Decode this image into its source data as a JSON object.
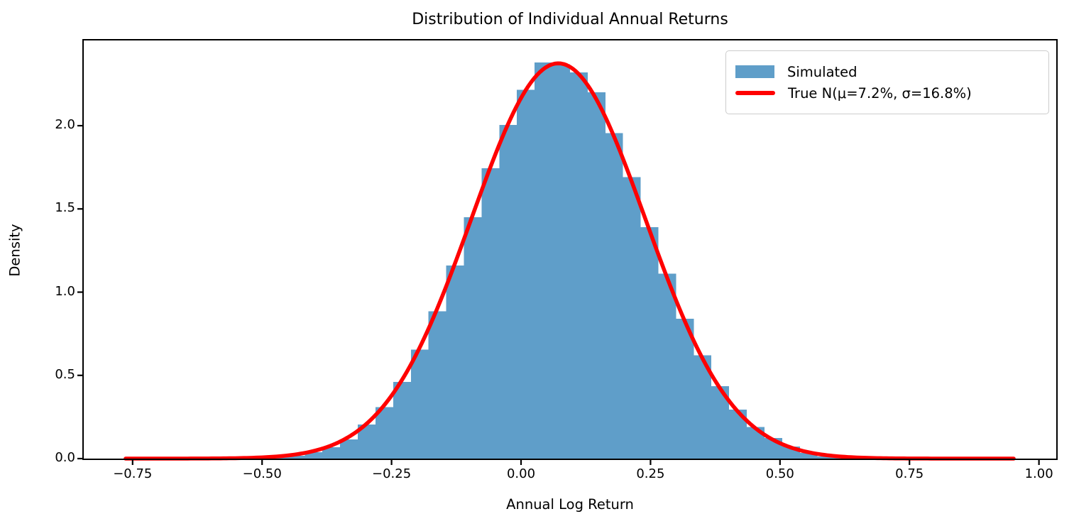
{
  "chart_data": {
    "type": "bar",
    "subtype": "histogram_with_normal_curve",
    "title": "Distribution of Individual Annual Returns",
    "xlabel": "Annual Log Return",
    "ylabel": "Density",
    "xlim": [
      -0.8443,
      1.0334
    ],
    "ylim": [
      0,
      2.512
    ],
    "grid": false,
    "legend_position": "upper right",
    "x_ticks": [
      {
        "value": -0.75,
        "label": "−0.75"
      },
      {
        "value": -0.5,
        "label": "−0.50"
      },
      {
        "value": -0.25,
        "label": "−0.25"
      },
      {
        "value": 0.0,
        "label": "0.00"
      },
      {
        "value": 0.25,
        "label": "0.25"
      },
      {
        "value": 0.5,
        "label": "0.50"
      },
      {
        "value": 0.75,
        "label": "0.75"
      },
      {
        "value": 1.0,
        "label": "1.00"
      }
    ],
    "y_ticks": [
      {
        "value": 0.0,
        "label": "0.0"
      },
      {
        "value": 0.5,
        "label": "0.5"
      },
      {
        "value": 1.0,
        "label": "1.0"
      },
      {
        "value": 1.5,
        "label": "1.5"
      },
      {
        "value": 2.0,
        "label": "2.0"
      }
    ],
    "series": [
      {
        "name": "Simulated",
        "kind": "histogram",
        "color": "#5f9ec9",
        "bin_start": -0.759,
        "bin_width": 0.03414,
        "densities": [
          0.002,
          0.0,
          0.001,
          0.001,
          0.002,
          0.003,
          0.005,
          0.008,
          0.012,
          0.018,
          0.038,
          0.068,
          0.115,
          0.205,
          0.31,
          0.46,
          0.655,
          0.885,
          1.16,
          1.45,
          1.745,
          2.005,
          2.215,
          2.38,
          2.37,
          2.32,
          2.2,
          1.955,
          1.69,
          1.39,
          1.11,
          0.84,
          0.62,
          0.435,
          0.295,
          0.19,
          0.124,
          0.073,
          0.034,
          0.012,
          0.008,
          0.004,
          0.003,
          0.002,
          0.001,
          0.001,
          0.001,
          0.0,
          0.0,
          0.001
        ]
      },
      {
        "name": "True N(μ=7.2%, σ=16.8%)",
        "kind": "normal_pdf",
        "color": "#ff0000",
        "mu": 0.072,
        "sigma": 0.168,
        "mu_label": "7.2%",
        "sigma_label": "16.8%",
        "x_start": -0.7635,
        "x_end": 0.9512,
        "peak_density": 2.374,
        "line_width": 5.5
      }
    ]
  }
}
